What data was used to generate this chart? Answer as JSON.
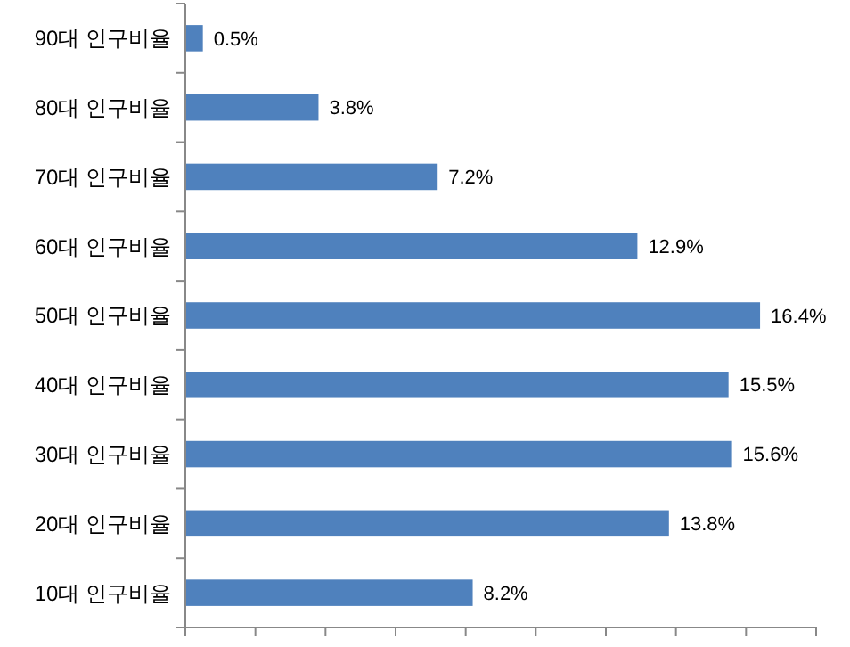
{
  "chart_data": {
    "type": "bar",
    "orientation": "horizontal",
    "categories": [
      "90대 인구비율",
      "80대 인구비율",
      "70대 인구비율",
      "60대 인구비율",
      "50대 인구비율",
      "40대 인구비율",
      "30대 인구비율",
      "20대 인구비율",
      "10대 인구비율"
    ],
    "values": [
      0.5,
      3.8,
      7.2,
      12.9,
      16.4,
      15.5,
      15.6,
      13.8,
      8.2
    ],
    "value_labels": [
      "0.5%",
      "3.8%",
      "7.2%",
      "12.9%",
      "16.4%",
      "15.5%",
      "15.6%",
      "13.8%",
      "8.2%"
    ],
    "color": "#4f81bd",
    "xlim": [
      0,
      18
    ],
    "xticks": [
      {
        "value": 0,
        "label": null
      },
      {
        "value": 2,
        "label": null
      },
      {
        "value": 4,
        "label": null
      },
      {
        "value": 6,
        "label": null
      },
      {
        "value": 8,
        "label": null
      },
      {
        "value": 10,
        "label": null
      },
      {
        "value": 12,
        "label": null
      },
      {
        "value": 14,
        "label": null
      },
      {
        "value": 16,
        "label": null
      },
      {
        "value": 18,
        "label": null
      }
    ],
    "tick_labels": "y"
  }
}
